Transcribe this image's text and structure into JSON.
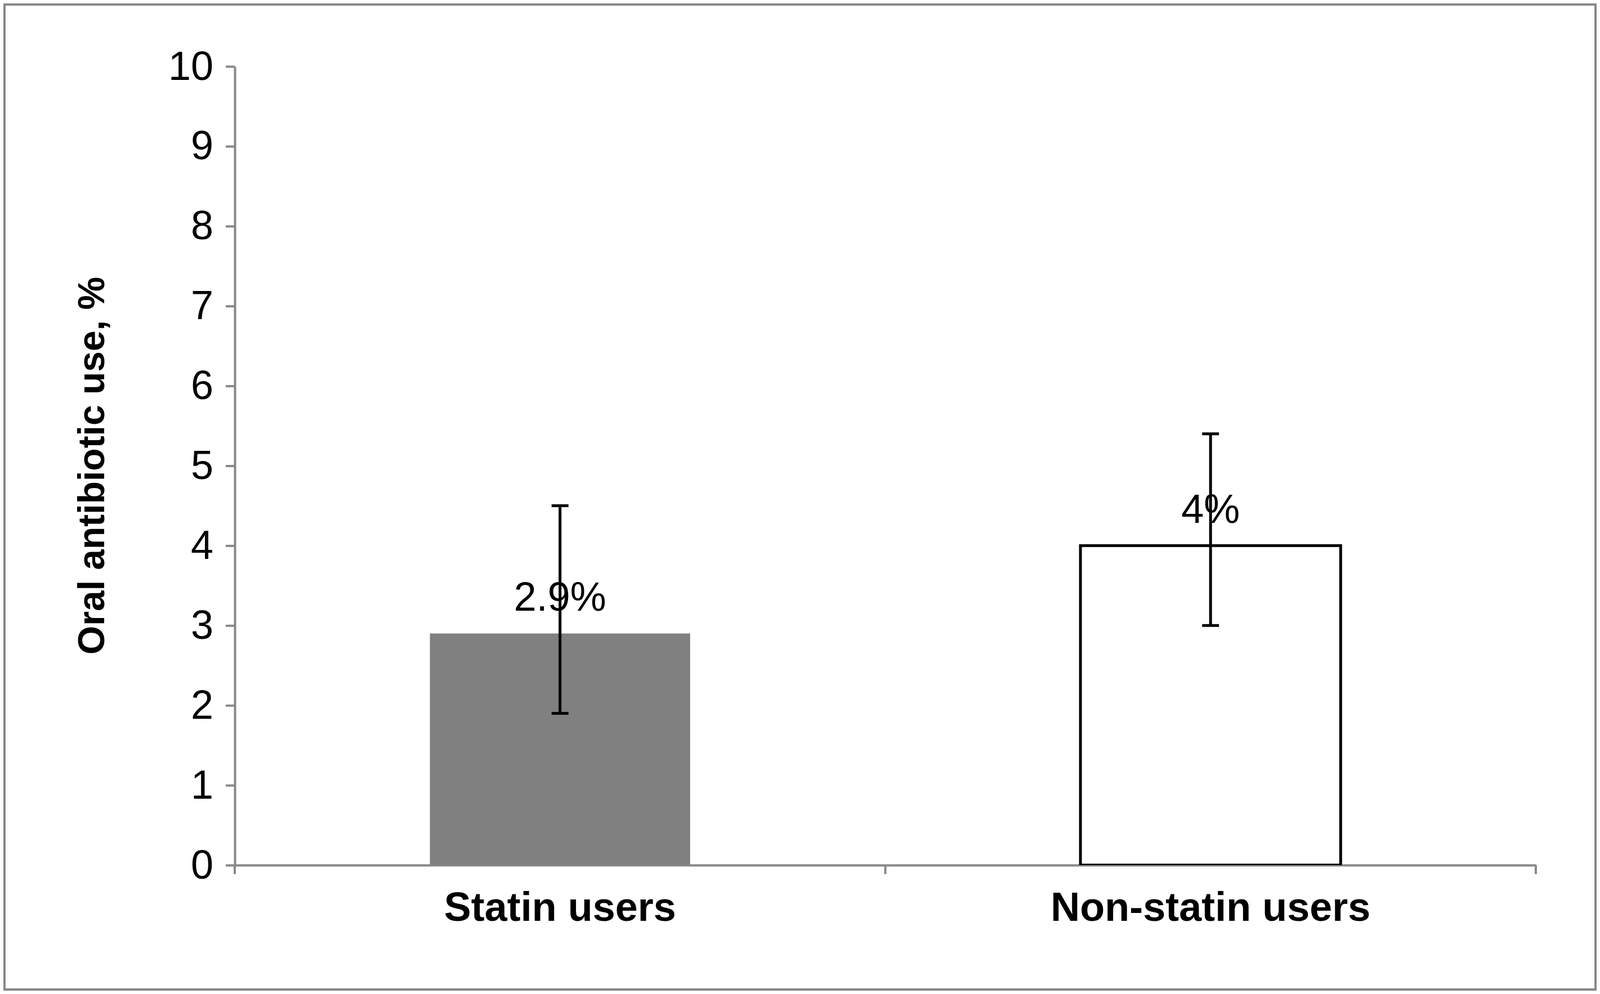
{
  "chart_data": {
    "type": "bar",
    "y_label": "Oral antibiotic use, %",
    "categories": [
      "Statin users",
      "Non-statin users"
    ],
    "values": [
      2.9,
      4
    ],
    "value_labels": [
      "2.9%",
      "4%"
    ],
    "error_low": [
      1.9,
      3.0
    ],
    "error_high": [
      4.5,
      5.4
    ],
    "colors": [
      "#808080",
      "#ffffff"
    ],
    "ylim": [
      0,
      10
    ],
    "yticks": [
      0,
      1,
      2,
      3,
      4,
      5,
      6,
      7,
      8,
      9,
      10
    ],
    "grid": false,
    "data_labels": true
  }
}
